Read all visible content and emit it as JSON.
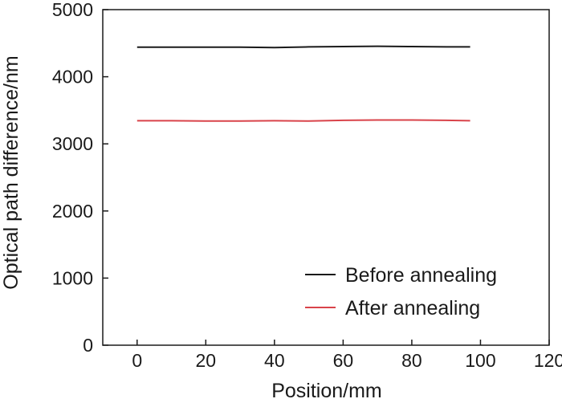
{
  "chart_data": {
    "type": "line",
    "xlabel": "Position/mm",
    "ylabel": "Optical path difference/nm",
    "xlim": [
      -10,
      120
    ],
    "ylim": [
      0,
      5000
    ],
    "xticks": [
      0,
      20,
      40,
      60,
      80,
      100,
      120
    ],
    "yticks": [
      0,
      1000,
      2000,
      3000,
      4000,
      5000
    ],
    "grid": false,
    "legend_position": "bottom-right",
    "series": [
      {
        "name": "Before annealing",
        "color": "#1a1a1a",
        "x": [
          0,
          10,
          20,
          30,
          40,
          50,
          60,
          70,
          80,
          90,
          97
        ],
        "y": [
          4440,
          4440,
          4440,
          4440,
          4435,
          4445,
          4450,
          4455,
          4450,
          4445,
          4445
        ]
      },
      {
        "name": "After annealing",
        "color": "#d9434a",
        "x": [
          0,
          10,
          20,
          30,
          40,
          50,
          60,
          70,
          80,
          90,
          97
        ],
        "y": [
          3345,
          3345,
          3340,
          3340,
          3345,
          3340,
          3350,
          3355,
          3355,
          3350,
          3345
        ]
      }
    ]
  }
}
